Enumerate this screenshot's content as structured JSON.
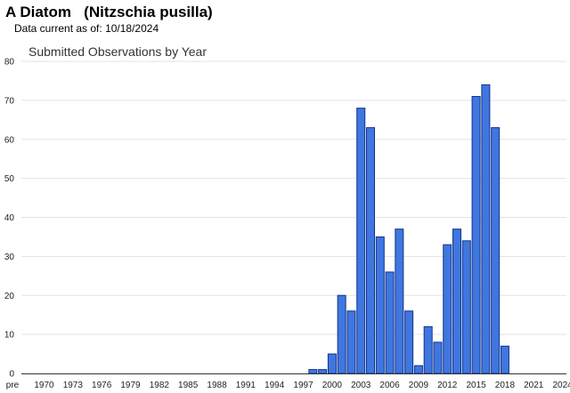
{
  "header": {
    "common_name": "A Diatom",
    "scientific_name": "(Nitzschia pusilla)",
    "data_current_label": "Data current as of:",
    "data_current_date": "10/18/2024"
  },
  "chart_data": {
    "type": "bar",
    "title": "Submitted Observations by Year",
    "xlabel": "",
    "ylabel": "",
    "ylim": [
      0,
      80
    ],
    "yticks": [
      0,
      10,
      20,
      30,
      40,
      50,
      60,
      70,
      80
    ],
    "categories": [
      "pre",
      "1970",
      "1971",
      "1972",
      "1973",
      "1974",
      "1975",
      "1976",
      "1977",
      "1978",
      "1979",
      "1980",
      "1981",
      "1982",
      "1983",
      "1984",
      "1985",
      "1986",
      "1987",
      "1988",
      "1989",
      "1990",
      "1991",
      "1992",
      "1993",
      "1994",
      "1995",
      "1996",
      "1997",
      "1998",
      "1999",
      "2000",
      "2001",
      "2002",
      "2003",
      "2004",
      "2005",
      "2006",
      "2007",
      "2008",
      "2009",
      "2010",
      "2011",
      "2012",
      "2013",
      "2014",
      "2015",
      "2016",
      "2017",
      "2018",
      "2019",
      "2020",
      "2021",
      "2022",
      "2023",
      "2024"
    ],
    "tick_labels": [
      "pre",
      "1970",
      "1973",
      "1976",
      "1979",
      "1982",
      "1985",
      "1988",
      "1991",
      "1994",
      "1997",
      "2000",
      "2003",
      "2006",
      "2009",
      "2012",
      "2015",
      "2018",
      "2021",
      "2024"
    ],
    "values": [
      0,
      0,
      0,
      0,
      0,
      0,
      0,
      0,
      0,
      0,
      0,
      0,
      0,
      0,
      0,
      0,
      0,
      0,
      0,
      0,
      0,
      0,
      0,
      0,
      0,
      0,
      0,
      0,
      0,
      1,
      1,
      5,
      20,
      16,
      68,
      63,
      35,
      26,
      37,
      16,
      2,
      12,
      8,
      33,
      37,
      34,
      71,
      74,
      63,
      7,
      0,
      0,
      0,
      0,
      0,
      0
    ],
    "bar_color": "#3f77df",
    "bar_edge_color": "#12328a",
    "grid": true,
    "legend": "none"
  }
}
